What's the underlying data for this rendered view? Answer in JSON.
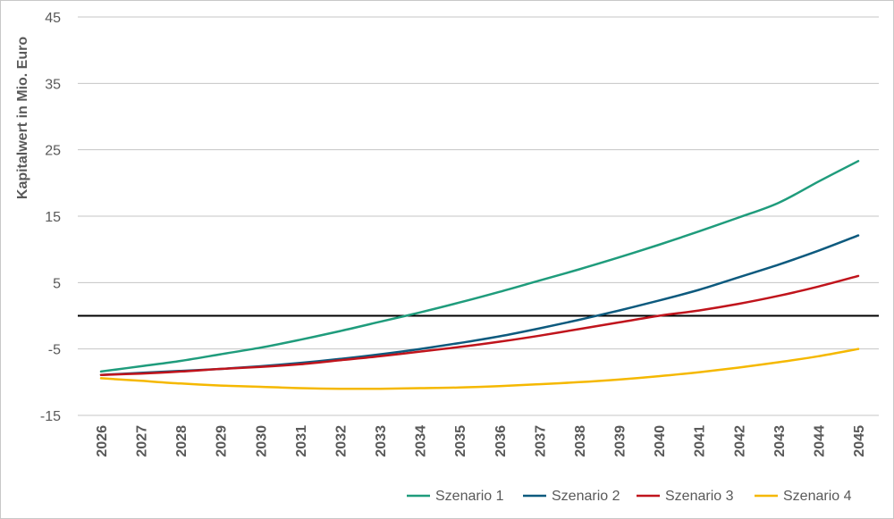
{
  "chart_data": {
    "type": "line",
    "title": "",
    "xlabel": "",
    "ylabel": "Kapitalwert in Mio. Euro",
    "x": [
      "2026",
      "2027",
      "2028",
      "2029",
      "2030",
      "2031",
      "2032",
      "2033",
      "2034",
      "2035",
      "2036",
      "2037",
      "2038",
      "2039",
      "2040",
      "2041",
      "2042",
      "2043",
      "2044",
      "2045"
    ],
    "ylim": [
      -15,
      45
    ],
    "yticks": [
      "45",
      "35",
      "25",
      "15",
      "5",
      "-5",
      "-15"
    ],
    "ytick_values": [
      45,
      35,
      25,
      15,
      5,
      -5,
      -15
    ],
    "reference_line": 0,
    "grid": true,
    "legend_position": "bottom-right",
    "series": [
      {
        "name": "Szenario 1",
        "color": "#1f9c7c",
        "values": [
          -8.4,
          -7.6,
          -6.8,
          -5.8,
          -4.8,
          -3.6,
          -2.3,
          -0.9,
          0.5,
          2.0,
          3.6,
          5.3,
          7.0,
          8.8,
          10.7,
          12.7,
          14.8,
          17.0,
          20.2,
          23.3
        ]
      },
      {
        "name": "Szenario 2",
        "color": "#0d5a7e",
        "values": [
          -8.9,
          -8.6,
          -8.3,
          -8.0,
          -7.6,
          -7.1,
          -6.5,
          -5.8,
          -5.0,
          -4.1,
          -3.1,
          -1.9,
          -0.6,
          0.8,
          2.3,
          3.9,
          5.8,
          7.7,
          9.8,
          12.1
        ]
      },
      {
        "name": "Szenario 3",
        "color": "#c0141c",
        "values": [
          -8.9,
          -8.7,
          -8.4,
          -8.0,
          -7.7,
          -7.3,
          -6.7,
          -6.1,
          -5.4,
          -4.7,
          -3.9,
          -3.0,
          -2.0,
          -1.0,
          0.0,
          0.8,
          1.8,
          3.0,
          4.4,
          6.0
        ]
      },
      {
        "name": "Szenario 4",
        "color": "#f5b800",
        "values": [
          -9.4,
          -9.8,
          -10.2,
          -10.5,
          -10.7,
          -10.9,
          -11.0,
          -11.0,
          -10.9,
          -10.8,
          -10.6,
          -10.3,
          -10.0,
          -9.6,
          -9.1,
          -8.5,
          -7.8,
          -7.0,
          -6.1,
          -5.0
        ]
      }
    ]
  }
}
